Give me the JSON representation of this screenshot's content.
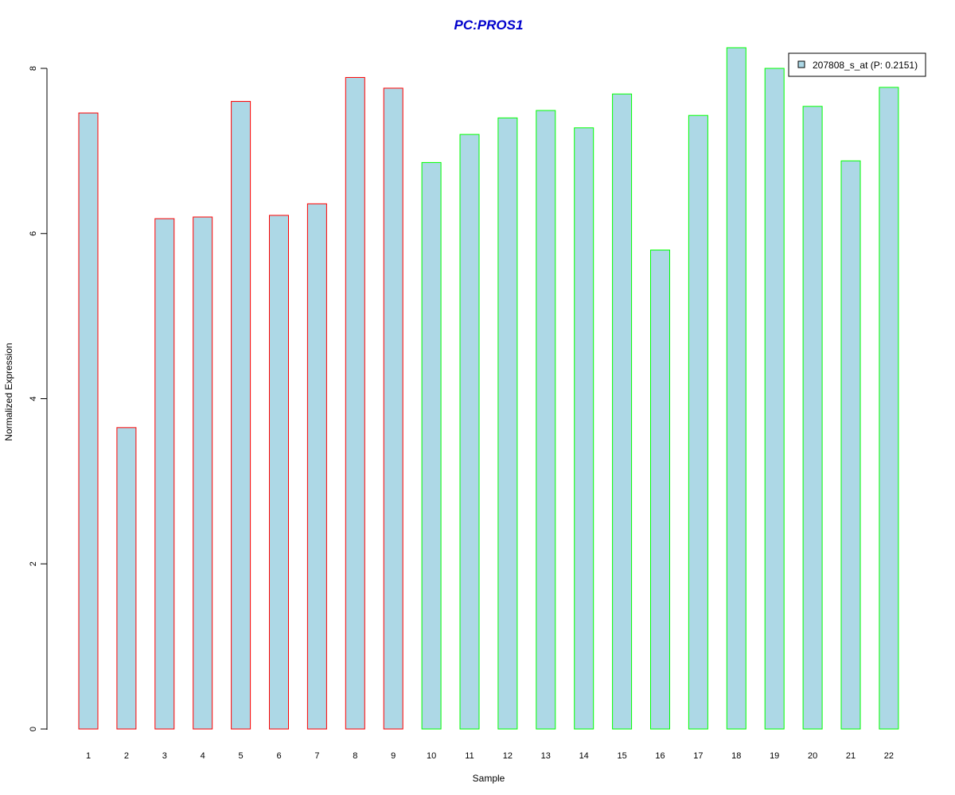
{
  "chart_data": {
    "type": "bar",
    "title": "PC:PROS1",
    "xlabel": "Sample",
    "ylabel": "Normalized Expression",
    "ylim": [
      0,
      8.3
    ],
    "yticks": [
      0,
      2,
      4,
      6,
      8
    ],
    "categories": [
      "1",
      "2",
      "3",
      "4",
      "5",
      "6",
      "7",
      "8",
      "9",
      "10",
      "11",
      "12",
      "13",
      "14",
      "15",
      "16",
      "17",
      "18",
      "19",
      "20",
      "21",
      "22"
    ],
    "series": [
      {
        "name": "207808_s_at (P: 0.2151)",
        "values": [
          7.46,
          3.65,
          6.18,
          6.2,
          7.6,
          6.22,
          6.36,
          7.89,
          7.76,
          6.86,
          7.2,
          7.4,
          7.49,
          7.28,
          7.69,
          5.8,
          7.43,
          8.25,
          8.0,
          7.54,
          6.88,
          7.77
        ]
      }
    ],
    "groups": [
      "red",
      "red",
      "red",
      "red",
      "red",
      "red",
      "red",
      "red",
      "red",
      "green",
      "green",
      "green",
      "green",
      "green",
      "green",
      "green",
      "green",
      "green",
      "green",
      "green",
      "green",
      "green"
    ],
    "colors": {
      "fill": "#add8e6",
      "red": "#ff0000",
      "green": "#00ff00",
      "title": "#0000cc"
    },
    "grid": false,
    "legend_position": "top-right"
  }
}
